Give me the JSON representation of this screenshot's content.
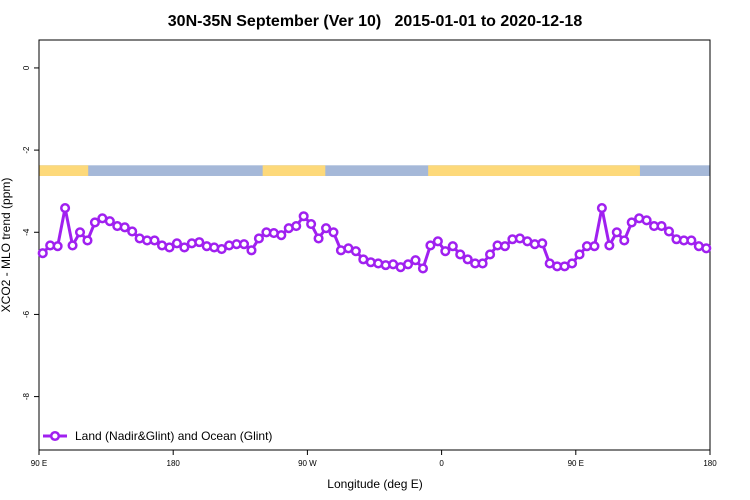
{
  "chart_data": {
    "type": "line",
    "title": "30N-35N September (Ver 10)   2015-01-01 to 2020-12-18",
    "x_label": "Longitude (deg E)",
    "y_label": "XCO2 - MLO trend (ppm)",
    "xlim": [
      90,
      540
    ],
    "ylim": [
      -9.3,
      0.68
    ],
    "xticks": [
      {
        "value": 90,
        "label": "90 E"
      },
      180,
      {
        "value": 270,
        "label": "90 W"
      },
      {
        "value": 360,
        "label": "0"
      },
      {
        "value": 450,
        "label": "90 E"
      },
      {
        "value": 540,
        "label": "180"
      }
    ],
    "yticks": [
      0,
      -2,
      -4,
      -6,
      -8
    ],
    "legend_position": "bottom-left",
    "land_mask": {
      "ylim": [
        -2.63,
        -2.37
      ],
      "land_color": "#fdd97a",
      "ocean_color": "#a5b8d8",
      "land": [
        [
          90,
          123
        ],
        [
          240,
          282
        ],
        [
          351,
          493
        ]
      ]
    },
    "x": [
      92.5,
      97.5,
      102.5,
      107.5,
      112.5,
      117.5,
      122.5,
      127.5,
      132.5,
      137.5,
      142.5,
      147.5,
      152.5,
      157.5,
      162.5,
      167.5,
      172.5,
      177.5,
      182.5,
      187.5,
      192.5,
      197.5,
      202.5,
      207.5,
      212.5,
      217.5,
      222.5,
      227.5,
      232.5,
      237.5,
      242.5,
      247.5,
      252.5,
      257.5,
      262.5,
      267.5,
      272.5,
      277.5,
      282.5,
      287.5,
      292.5,
      297.5,
      302.5,
      307.5,
      312.5,
      317.5,
      322.5,
      327.5,
      332.5,
      337.5,
      342.5,
      347.5,
      352.5,
      357.5,
      362.5,
      367.5,
      372.5,
      377.5,
      382.5,
      387.5,
      392.5,
      397.5,
      402.5,
      407.5,
      412.5,
      417.5,
      422.5,
      427.5,
      432.5,
      437.5,
      442.5,
      447.5,
      452.5,
      457.5,
      462.5,
      467.5,
      472.5,
      477.5,
      482.5,
      487.5,
      492.5,
      497.5,
      502.5,
      507.5,
      512.5,
      517.5,
      522.5,
      527.5,
      532.5,
      537.5
    ],
    "series": [
      {
        "name": "Land (Nadir&Glint) and Ocean (Glint)",
        "color": "#a020f0",
        "values": [
          -4.51,
          -4.32,
          -4.34,
          -3.41,
          -4.32,
          -4.0,
          -4.2,
          -3.76,
          -3.66,
          -3.73,
          -3.85,
          -3.88,
          -3.98,
          -4.15,
          -4.2,
          -4.2,
          -4.32,
          -4.37,
          -4.27,
          -4.37,
          -4.27,
          -4.24,
          -4.34,
          -4.37,
          -4.41,
          -4.32,
          -4.29,
          -4.29,
          -4.44,
          -4.15,
          -4.0,
          -4.02,
          -4.07,
          -3.9,
          -3.85,
          -3.61,
          -3.8,
          -4.15,
          -3.9,
          -4.0,
          -4.44,
          -4.39,
          -4.46,
          -4.66,
          -4.73,
          -4.76,
          -4.8,
          -4.78,
          -4.85,
          -4.78,
          -4.68,
          -4.88,
          -4.32,
          -4.22,
          -4.46,
          -4.34,
          -4.54,
          -4.66,
          -4.76,
          -4.76,
          -4.54,
          -4.32,
          -4.34,
          -4.17,
          -4.15,
          -4.22,
          -4.29,
          -4.27,
          -4.76,
          -4.83,
          -4.83,
          -4.76,
          -4.54,
          -4.34,
          -4.34,
          -3.41,
          -4.32,
          -4.0,
          -4.2,
          -3.76,
          -3.66,
          -3.71,
          -3.85,
          -3.85,
          -3.98,
          -4.17,
          -4.2,
          -4.2,
          -4.34,
          -4.39
        ]
      }
    ]
  }
}
